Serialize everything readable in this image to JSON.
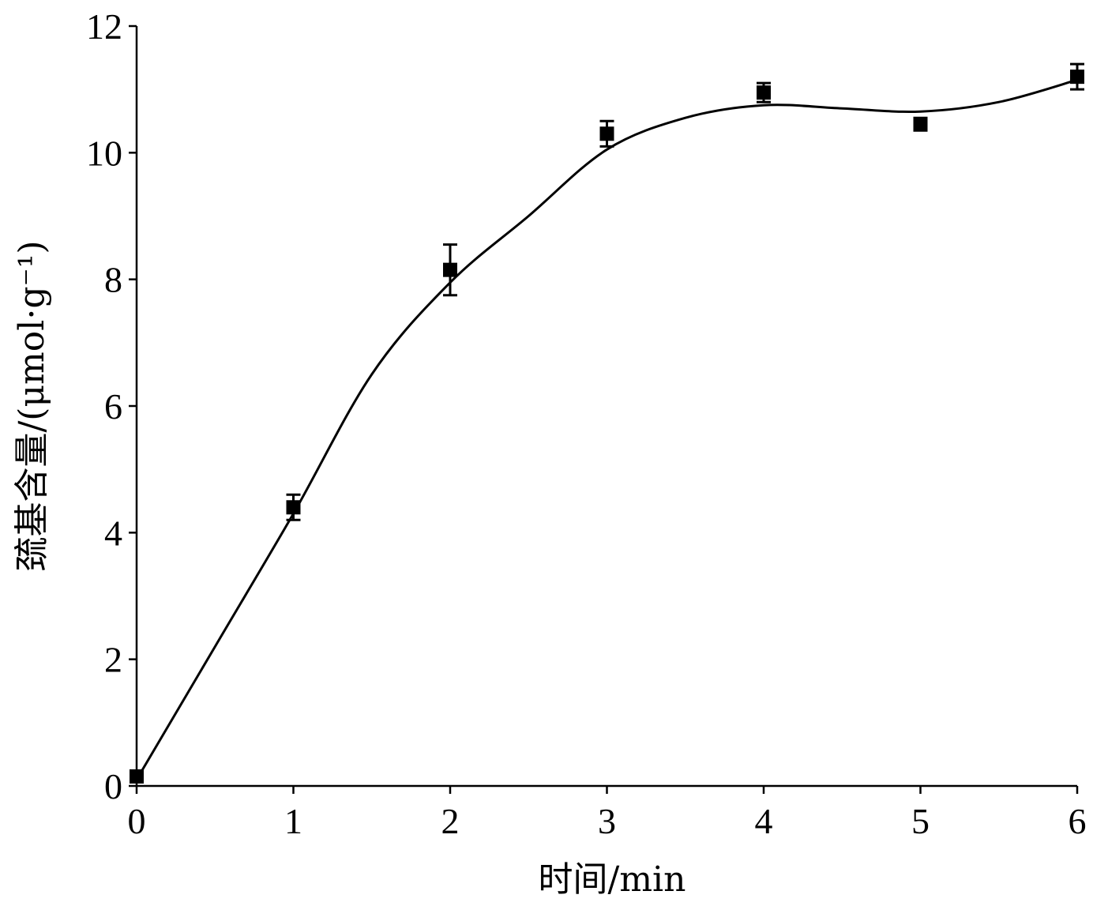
{
  "chart_data": {
    "type": "line",
    "xlabel": "时间/min",
    "ylabel": "巯基含量/(μmol·g⁻¹)",
    "xlim": [
      0,
      6
    ],
    "ylim": [
      0,
      12
    ],
    "xticks": [
      "0",
      "1",
      "2",
      "3",
      "4",
      "5",
      "6"
    ],
    "yticks": [
      "0",
      "2",
      "4",
      "6",
      "8",
      "10",
      "12"
    ],
    "grid": false,
    "series": [
      {
        "marker": "square",
        "color": "#000000",
        "x": [
          0,
          1,
          2,
          3,
          4,
          5,
          6
        ],
        "y": [
          0.15,
          4.4,
          8.15,
          10.3,
          10.95,
          10.45,
          11.2
        ],
        "error": [
          0.05,
          0.2,
          0.4,
          0.2,
          0.15,
          0.1,
          0.2
        ]
      }
    ],
    "fit_curve": {
      "x": [
        0,
        0.5,
        1,
        1.5,
        2,
        2.5,
        3,
        3.5,
        4,
        4.5,
        5,
        5.5,
        6
      ],
      "y": [
        0.1,
        2.2,
        4.3,
        6.5,
        7.95,
        9.0,
        10.05,
        10.55,
        10.75,
        10.7,
        10.65,
        10.8,
        11.15
      ]
    }
  }
}
